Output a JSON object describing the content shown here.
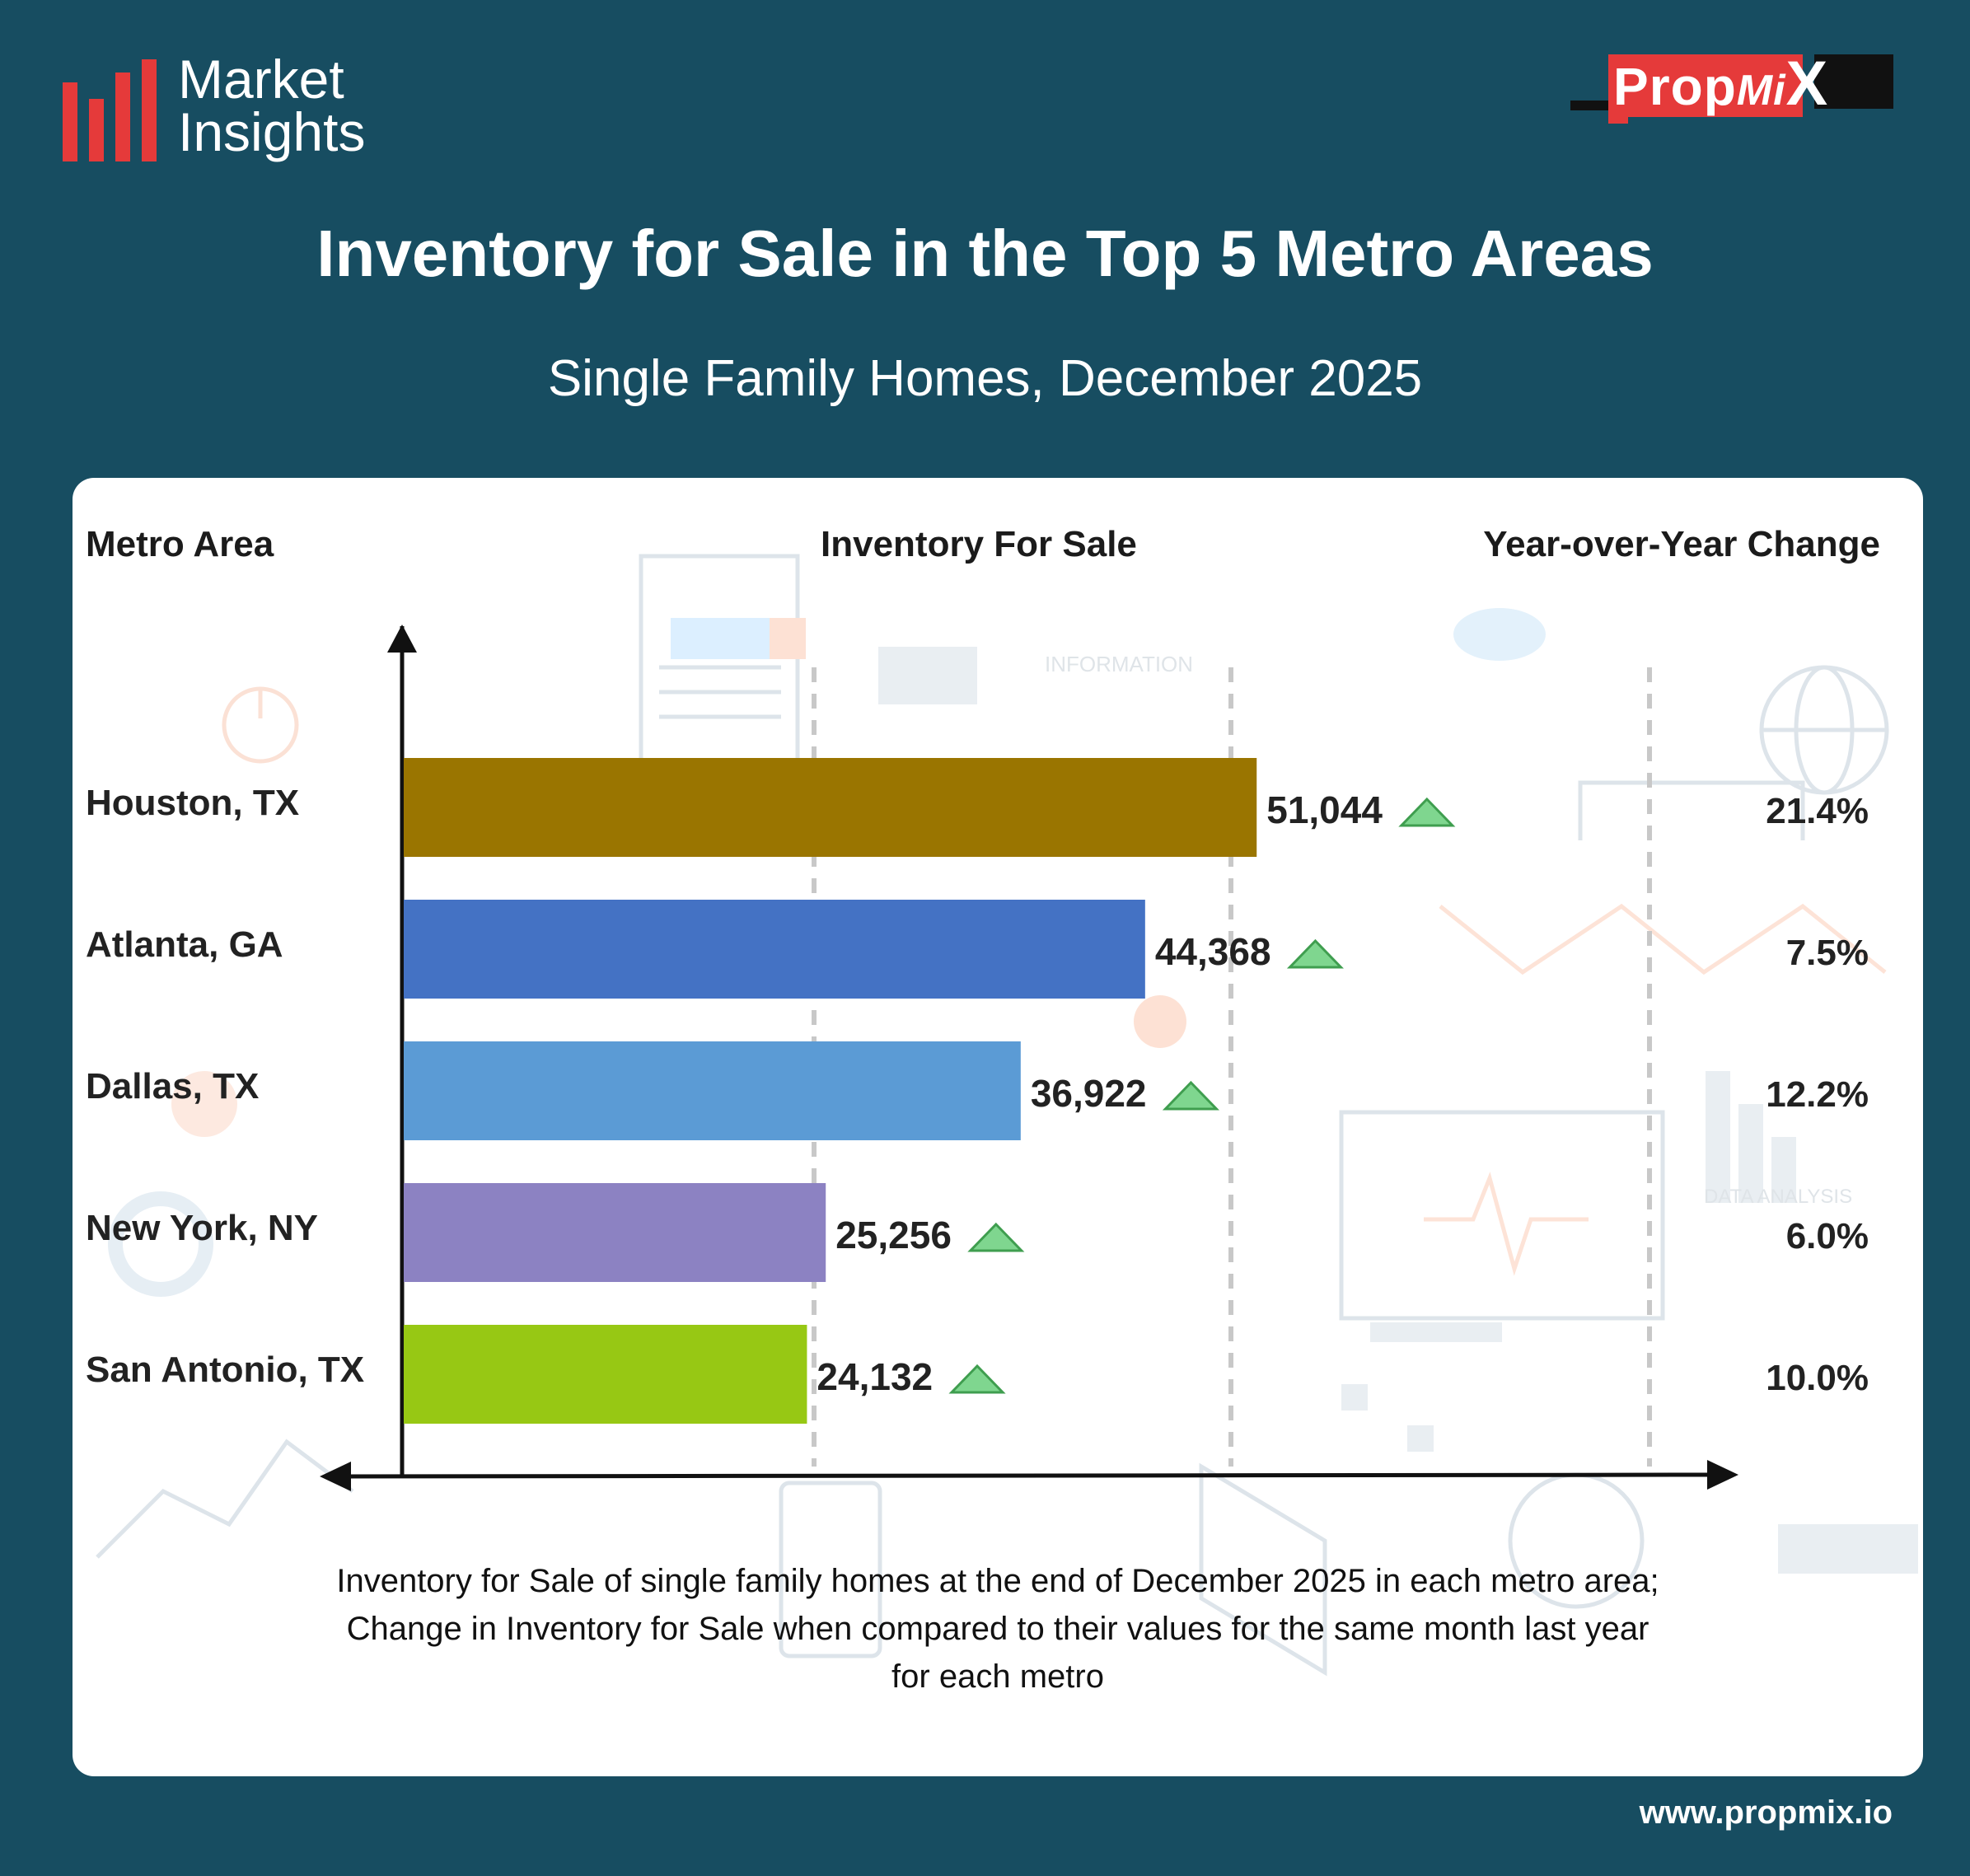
{
  "brand": {
    "line1": "Market",
    "line2": "Insights"
  },
  "logo": {
    "prop": "Prop",
    "mi": "Mi",
    "x": "X"
  },
  "title": "Inventory for Sale in the Top 5 Metro Areas",
  "subtitle": "Single Family Homes, December 2025",
  "headers": {
    "metro": "Metro Area",
    "inventory": "Inventory For Sale",
    "yoy": "Year-over-Year Change"
  },
  "chart_data": {
    "type": "bar",
    "orientation": "horizontal",
    "categories": [
      "Houston, TX",
      "Atlanta, GA",
      "Dallas, TX",
      "New York, NY",
      "San Antonio, TX"
    ],
    "values": [
      51044,
      44368,
      36922,
      25256,
      24132
    ],
    "value_labels": [
      "51,044",
      "44,368",
      "36,922",
      "25,256",
      "24,132"
    ],
    "yoy_change": [
      "21.4%",
      "7.5%",
      "12.2%",
      "6.0%",
      "10.0%"
    ],
    "trend": [
      "up",
      "up",
      "up",
      "up",
      "up"
    ],
    "colors": [
      "#9a7500",
      "#4472c4",
      "#5b9bd5",
      "#8c82c2",
      "#97c814"
    ],
    "trend_color": "#7fd68f",
    "xlim": [
      0,
      64000
    ],
    "grid": "dashed vertical"
  },
  "caption": [
    "Inventory for Sale of single family homes at the end of December 2025 in each metro area;",
    "Change in Inventory for Sale when compared to their values for the same month last year",
    "for each metro"
  ],
  "footer": "www.propmix.io"
}
